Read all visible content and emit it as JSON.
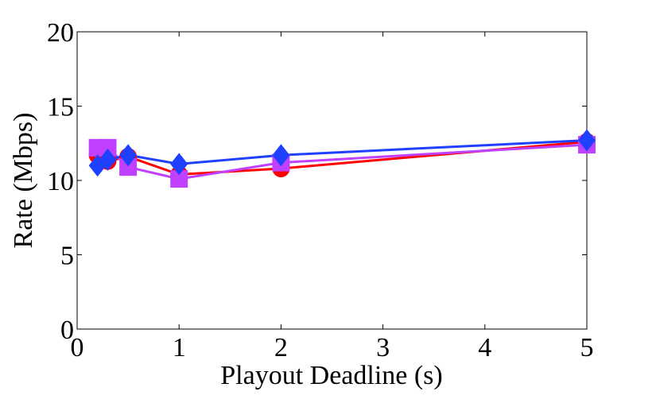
{
  "chart_data": {
    "type": "line",
    "title": "",
    "xlabel": "Playout Deadline (s)",
    "ylabel": "Rate (Mbps)",
    "xlim": [
      0,
      5
    ],
    "ylim": [
      0,
      20
    ],
    "x_ticks": [
      0,
      1,
      2,
      3,
      4,
      5
    ],
    "y_ticks": [
      0,
      5,
      10,
      15,
      20
    ],
    "grid": false,
    "legend": "none",
    "series": [
      {
        "color": "#ff0000",
        "marker": "circle",
        "x": [
          0.2,
          0.3,
          0.5,
          1,
          2,
          5
        ],
        "y": [
          11.7,
          11.3,
          11.6,
          10.4,
          10.8,
          12.6
        ]
      },
      {
        "color": "#bf40ff",
        "marker": "square",
        "x": [
          0.2,
          0.3,
          0.5,
          1,
          2,
          5
        ],
        "y": [
          12.2,
          12.2,
          10.9,
          10.1,
          11.2,
          12.4
        ]
      },
      {
        "color": "#2040ff",
        "marker": "diamond",
        "x": [
          0.2,
          0.3,
          0.5,
          1,
          2,
          5
        ],
        "y": [
          11.0,
          11.4,
          11.7,
          11.1,
          11.7,
          12.7
        ]
      }
    ]
  }
}
